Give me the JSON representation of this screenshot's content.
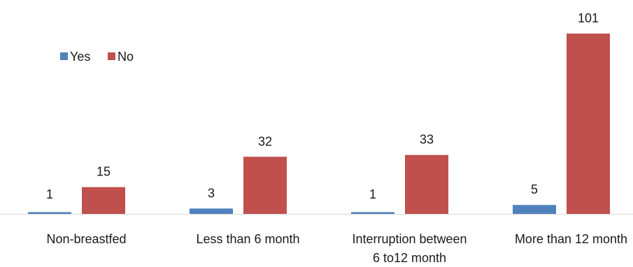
{
  "chart_data": {
    "type": "bar",
    "title": "",
    "xlabel": "",
    "ylabel": "",
    "ylim": [
      0,
      101
    ],
    "grid": false,
    "legend": "top-left",
    "categories": [
      [
        "Non-breastfed"
      ],
      [
        "Less than 6 month"
      ],
      [
        "Interruption between",
        "6 to12 month"
      ],
      [
        "More than 12 month"
      ]
    ],
    "series": [
      {
        "name": "Yes",
        "color": "#4F81BD",
        "values": [
          1,
          3,
          1,
          5
        ]
      },
      {
        "name": "No",
        "color": "#C0504D",
        "values": [
          15,
          32,
          33,
          101
        ]
      }
    ]
  }
}
